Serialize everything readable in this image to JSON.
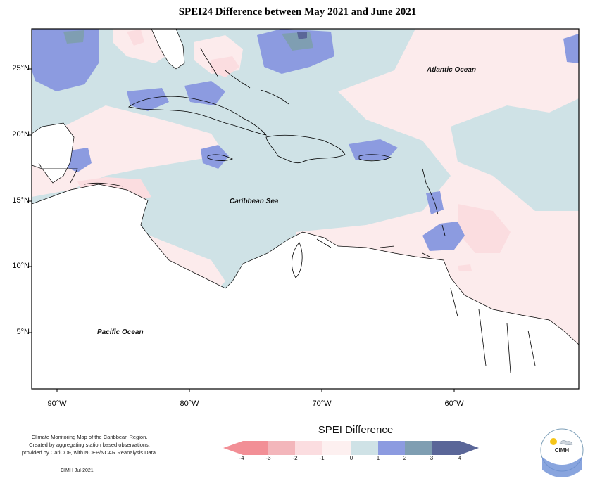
{
  "title": "SPEI24 Difference between May 2021 and June 2021",
  "axes": {
    "lat_labels": [
      "25°N",
      "20°N",
      "15°N",
      "10°N",
      "5°N"
    ],
    "lon_labels": [
      "90°W",
      "80°W",
      "70°W",
      "60°W"
    ]
  },
  "places": {
    "atlantic": "Atlantic Ocean",
    "caribbean": "Caribbean Sea",
    "pacific": "Pacific Ocean"
  },
  "credit": {
    "line1": "Climate Monitoring Map of the Caribbean Region.",
    "line2": "Created by aggregating station based observations,",
    "line3": "provided by CariCOF, with NCEP/NCAR Reanalysis Data.",
    "date": "CIMH Jul-2021"
  },
  "legend": {
    "title": "SPEI Difference",
    "ticks": [
      "-4",
      "-3",
      "-2",
      "-1",
      "0",
      "1",
      "2",
      "3",
      "4"
    ],
    "colors": [
      "#f28f96",
      "#f3b6bb",
      "#fbdde0",
      "#fdf0f0",
      "#cfe2e6",
      "#8c9be0",
      "#7f9eb2",
      "#5a6698"
    ]
  },
  "logo": {
    "text": "CIMH"
  }
}
